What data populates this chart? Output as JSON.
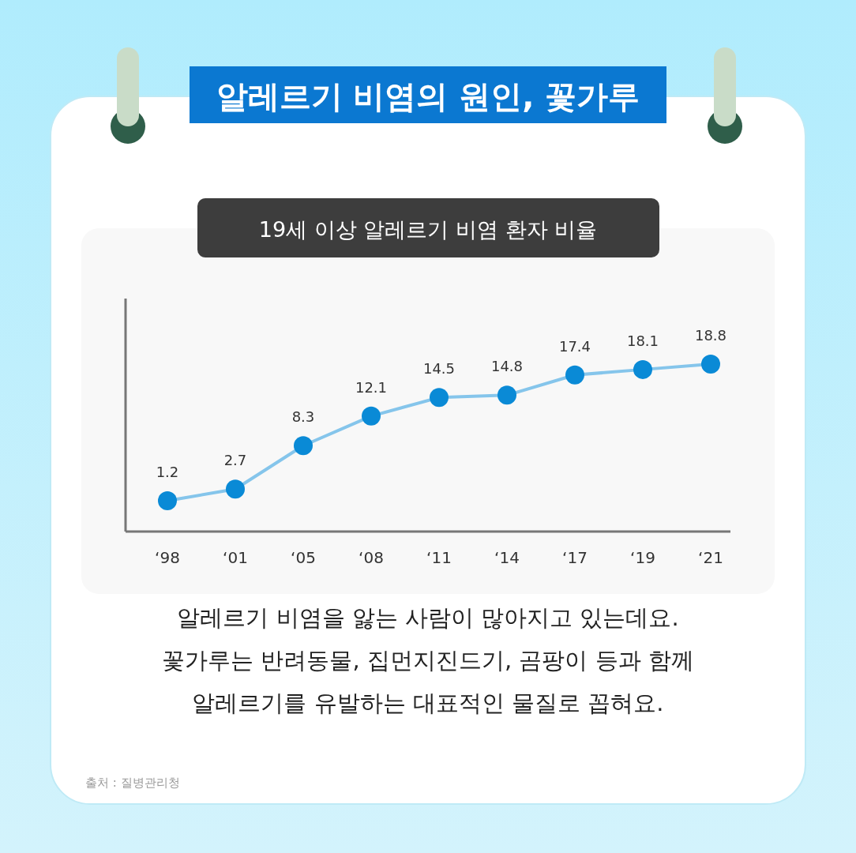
{
  "chart_data": {
    "type": "line",
    "title": "알레르기 비염의 원인, 꽃가루",
    "subtitle": "19세 이상 알레르기 비염 환자 비율",
    "categories": [
      "‘98",
      "‘01",
      "‘05",
      "‘08",
      "‘11",
      "‘14",
      "‘17",
      "‘19",
      "‘21"
    ],
    "series": [
      {
        "color": "#0a8ad6",
        "values": [
          1.2,
          2.7,
          8.3,
          12.1,
          14.5,
          14.8,
          17.4,
          18.1,
          18.8
        ]
      }
    ],
    "tick_labels": "x",
    "data_labels": true,
    "marker": "circle",
    "line_style": "solid",
    "annotations": [
      "알레르기 비염을 앓는 사람이 많아지고 있는데요.",
      "꽃가루는 반려동물, 집먼지진드기, 곰팡이 등과 함께",
      "알레르기를 유발하는 대표적인 물질로 꼽혀요.",
      "출처 : 질병관리청"
    ]
  }
}
